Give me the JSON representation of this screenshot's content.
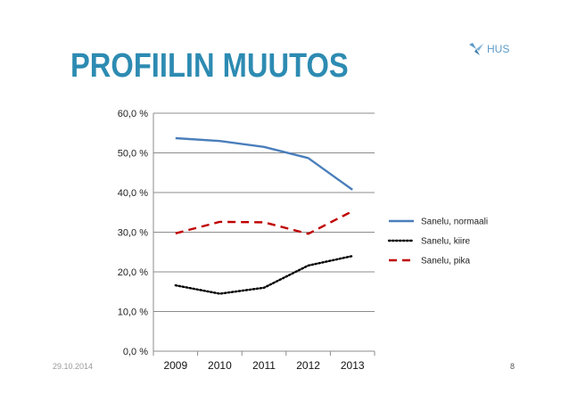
{
  "slide": {
    "title": "PROFIILIN MUUTOS",
    "logo_text": "HUS",
    "logo_icon": "hus-bird-icon",
    "date": "29.10.2014",
    "page_number": "8"
  },
  "chart_data": {
    "type": "line",
    "title": "",
    "xlabel": "",
    "ylabel": "",
    "x": [
      "2009",
      "2010",
      "2011",
      "2012",
      "2013"
    ],
    "ylim": [
      0,
      60
    ],
    "yticks": [
      "0,0 %",
      "10,0 %",
      "20,0 %",
      "30,0 %",
      "40,0 %",
      "50,0 %",
      "60,0 %"
    ],
    "grid": true,
    "legend": "right",
    "series": [
      {
        "name": "Sanelu, normaali",
        "values": [
          53.7,
          53.0,
          51.5,
          48.7,
          40.7
        ],
        "color": "#4a7ebb",
        "style": "solid"
      },
      {
        "name": "Sanelu, kiire",
        "values": [
          16.6,
          14.5,
          16.0,
          21.6,
          24.0
        ],
        "color": "#000000",
        "style": "dotted"
      },
      {
        "name": "Sanelu, pika",
        "values": [
          29.7,
          32.6,
          32.5,
          29.6,
          35.3
        ],
        "color": "#c00000",
        "style": "dashed"
      }
    ]
  }
}
